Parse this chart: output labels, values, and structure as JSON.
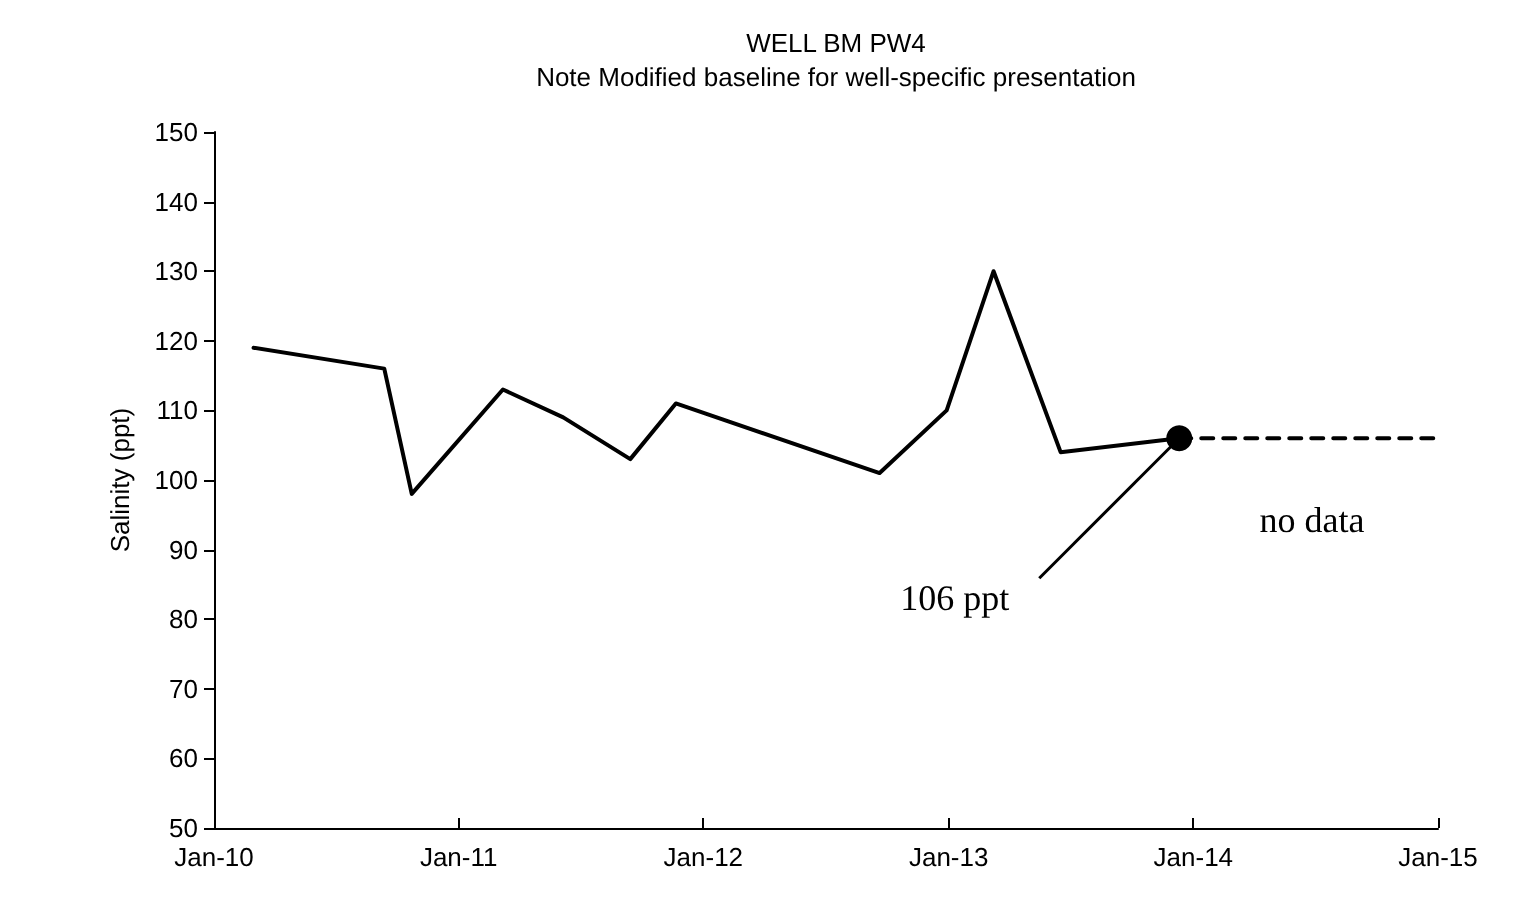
{
  "chart_data": {
    "type": "line",
    "title": "WELL BM PW4",
    "subtitle": "Note Modified baseline for well-specific presentation",
    "ylabel": "Salinity (ppt)",
    "x": [
      "2010-03-01",
      "2010-09-12",
      "2010-10-23",
      "2011-03-08",
      "2011-06-06",
      "2011-09-14",
      "2011-11-21",
      "2012-09-20",
      "2012-12-29",
      "2013-03-09",
      "2013-06-17",
      "2013-12-11"
    ],
    "series": [
      {
        "color": "#000000",
        "marker": "none",
        "line_style": "solid",
        "values": [
          119,
          116,
          98,
          113,
          109,
          103,
          111,
          101,
          110,
          130,
          104,
          106
        ]
      },
      {
        "type": "line",
        "color": "#000000",
        "marker": "none",
        "line_style": "dashed",
        "x": [
          "2013-12-11",
          "2015-01-01"
        ],
        "values": [
          106,
          106
        ]
      },
      {
        "type": "scatter",
        "color": "#000000",
        "marker": "circle",
        "x": [
          "2013-12-11"
        ],
        "values": [
          106
        ]
      }
    ],
    "xlim": [
      "2010-01-01",
      "2015-01-01"
    ],
    "xticks": [
      {
        "value": "2010-01-01",
        "label": "Jan-10"
      },
      {
        "value": "2011-01-01",
        "label": "Jan-11"
      },
      {
        "value": "2012-01-01",
        "label": "Jan-12"
      },
      {
        "value": "2013-01-01",
        "label": "Jan-13"
      },
      {
        "value": "2014-01-01",
        "label": "Jan-14"
      },
      {
        "value": "2015-01-01",
        "label": "Jan-15"
      }
    ],
    "ylim": [
      50,
      150
    ],
    "yticks": [
      50,
      60,
      70,
      80,
      90,
      100,
      110,
      120,
      130,
      140,
      150
    ],
    "annotations": [
      {
        "text": "106 ppt",
        "x": "2013-12-11",
        "y": 106
      },
      "no data"
    ]
  }
}
